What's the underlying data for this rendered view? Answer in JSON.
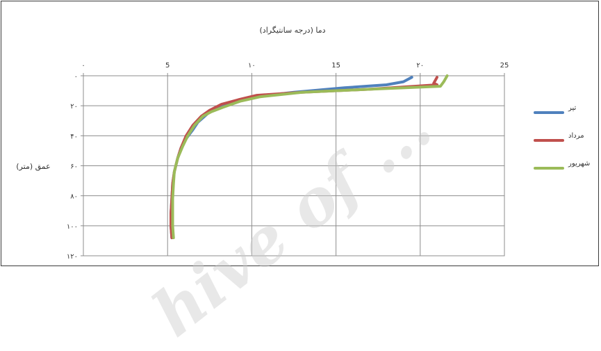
{
  "chart_data": {
    "type": "line",
    "title": "دما (درجه سانتیگراد)",
    "xlabel": "دما (درجه سانتیگراد)",
    "ylabel": "عمق (متر)",
    "x_axis_position": "top",
    "y_axis_inverted": true,
    "xlim": [
      0,
      25
    ],
    "ylim": [
      0,
      120
    ],
    "x_ticks": [
      0,
      5,
      10,
      15,
      20,
      25
    ],
    "y_ticks": [
      0,
      20,
      40,
      60,
      80,
      100,
      120
    ],
    "x_tick_labels": [
      "۰",
      "5",
      "۱۰",
      "15",
      "۲۰",
      "25"
    ],
    "y_tick_labels": [
      "۰",
      "۲۰",
      "۴۰",
      "۶۰",
      "۸۰",
      "۱۰۰",
      "۱۲۰"
    ],
    "grid": true,
    "legend_position": "right",
    "series": [
      {
        "name": "تیر",
        "color": "#4f81bd",
        "points": [
          [
            19.5,
            1
          ],
          [
            19.0,
            4
          ],
          [
            18.0,
            6
          ],
          [
            15.5,
            8
          ],
          [
            12.5,
            11
          ],
          [
            10.2,
            14
          ],
          [
            9.0,
            17
          ],
          [
            8.0,
            21
          ],
          [
            7.4,
            25
          ],
          [
            6.8,
            31
          ],
          [
            6.5,
            36
          ],
          [
            6.1,
            42
          ],
          [
            5.8,
            48
          ],
          [
            5.6,
            55
          ],
          [
            5.4,
            64
          ],
          [
            5.3,
            72
          ],
          [
            5.25,
            82
          ],
          [
            5.2,
            92
          ],
          [
            5.2,
            100
          ],
          [
            5.25,
            108
          ]
        ]
      },
      {
        "name": "مرداد",
        "color": "#c0504d",
        "points": [
          [
            21.0,
            1
          ],
          [
            20.8,
            5
          ],
          [
            21.0,
            6
          ],
          [
            17.0,
            9
          ],
          [
            13.0,
            11
          ],
          [
            10.3,
            13
          ],
          [
            9.2,
            16
          ],
          [
            8.2,
            19
          ],
          [
            7.5,
            23
          ],
          [
            7.0,
            27
          ],
          [
            6.5,
            33
          ],
          [
            6.1,
            40
          ],
          [
            5.8,
            48
          ],
          [
            5.6,
            55
          ],
          [
            5.4,
            64
          ],
          [
            5.3,
            72
          ],
          [
            5.25,
            82
          ],
          [
            5.2,
            92
          ],
          [
            5.2,
            100
          ],
          [
            5.25,
            108
          ]
        ]
      },
      {
        "name": "شهریور",
        "color": "#9bbb59",
        "points": [
          [
            21.6,
            0
          ],
          [
            21.4,
            4
          ],
          [
            21.2,
            7
          ],
          [
            17.0,
            9
          ],
          [
            13.0,
            11
          ],
          [
            10.5,
            14
          ],
          [
            9.3,
            17
          ],
          [
            8.3,
            21
          ],
          [
            7.6,
            24
          ],
          [
            7.1,
            27
          ],
          [
            6.6,
            33
          ],
          [
            6.2,
            40
          ],
          [
            5.9,
            47
          ],
          [
            5.6,
            55
          ],
          [
            5.4,
            64
          ],
          [
            5.35,
            72
          ],
          [
            5.3,
            82
          ],
          [
            5.3,
            92
          ],
          [
            5.3,
            100
          ],
          [
            5.35,
            108
          ]
        ]
      }
    ]
  },
  "watermark": "hive of ..."
}
